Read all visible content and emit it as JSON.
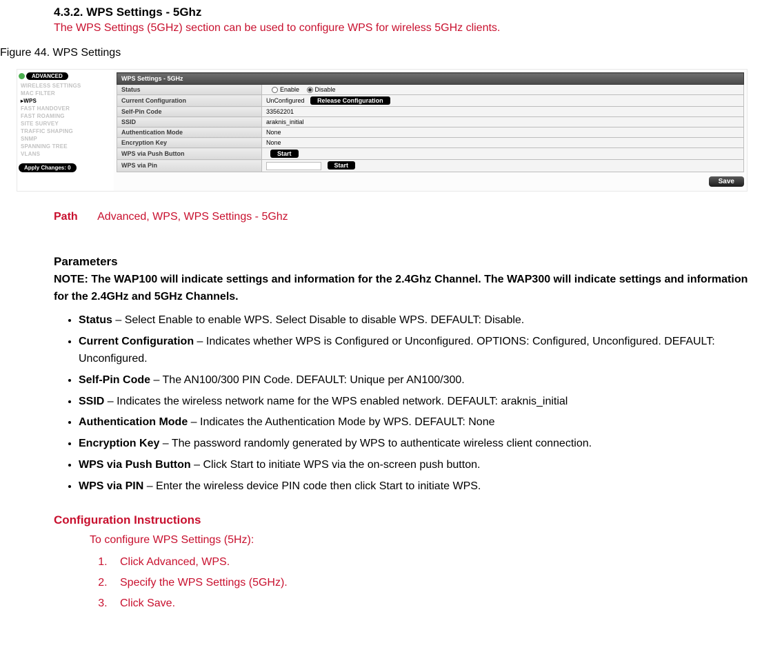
{
  "section": {
    "number_title": "4.3.2. WPS Settings - 5Ghz",
    "subtitle": "The WPS Settings (5GHz) section can be used to configure WPS for wireless 5GHz clients.",
    "figure_label": "Figure 44. WPS Settings"
  },
  "screenshot": {
    "badge": "ADVANCED",
    "nav": [
      "WIRELESS SETTINGS",
      "MAC FILTER",
      "▸WPS",
      "FAST HANDOVER",
      "FAST ROAMING",
      "SITE SURVEY",
      "TRAFFIC SHAPING",
      "SNMP",
      "SPANNING TREE",
      "VLANS"
    ],
    "nav_active_index": 2,
    "apply_label": "Apply Changes: 0",
    "panel_title": "WPS Settings - 5GHz",
    "rows": {
      "status_label": "Status",
      "status_enable": "Enable",
      "status_disable": "Disable",
      "current_cfg_label": "Current Configuration",
      "current_cfg_value": "UnConfigured",
      "release_btn": "Release Configuration",
      "selfpin_label": "Self-Pin Code",
      "selfpin_value": "33562201",
      "ssid_label": "SSID",
      "ssid_value": "araknis_initial",
      "auth_label": "Authentication Mode",
      "auth_value": "None",
      "enc_label": "Encryption Key",
      "enc_value": "None",
      "push_label": "WPS via Push Button",
      "push_btn": "Start",
      "pin_label": "WPS via Pin",
      "pin_btn": "Start"
    },
    "save_label": "Save"
  },
  "path": {
    "label": "Path",
    "value": "Advanced, WPS, WPS Settings - 5Ghz"
  },
  "parameters": {
    "heading": "Parameters",
    "note": "NOTE: The WAP100 will indicate settings and information for the 2.4Ghz Channel. The WAP300 will indicate settings and information for the 2.4GHz and 5GHz Channels.",
    "items": [
      {
        "name": "Status",
        "desc": " – Select Enable to enable WPS. Select Disable to disable WPS. DEFAULT: Disable."
      },
      {
        "name": "Current Configuration",
        "desc": " – Indicates whether WPS is Configured or Unconfigured. OPTIONS: Configured, Unconfigured. DEFAULT: Unconfigured."
      },
      {
        "name": "Self-Pin Code",
        "desc": " – The AN100/300 PIN Code. DEFAULT: Unique per AN100/300."
      },
      {
        "name": "SSID",
        "desc": " – Indicates the wireless network name for the WPS enabled network. DEFAULT: araknis_initial"
      },
      {
        "name": "Authentication Mode",
        "desc": " – Indicates the Authentication Mode by WPS. DEFAULT: None"
      },
      {
        "name": "Encryption Key",
        "desc": " – The password randomly generated by WPS to authenticate wireless client connection."
      },
      {
        "name": "WPS via Push Button",
        "desc": " – Click Start to initiate WPS via the on-screen push button."
      },
      {
        "name": "WPS via PIN",
        "desc": " – Enter the wireless device PIN code then click Start to initiate WPS."
      }
    ]
  },
  "config": {
    "heading": "Configuration Instructions",
    "intro": "To configure WPS Settings (5Hz):",
    "steps": [
      "Click Advanced, WPS.",
      "Specify the WPS Settings (5GHz).",
      "Click Save."
    ]
  }
}
